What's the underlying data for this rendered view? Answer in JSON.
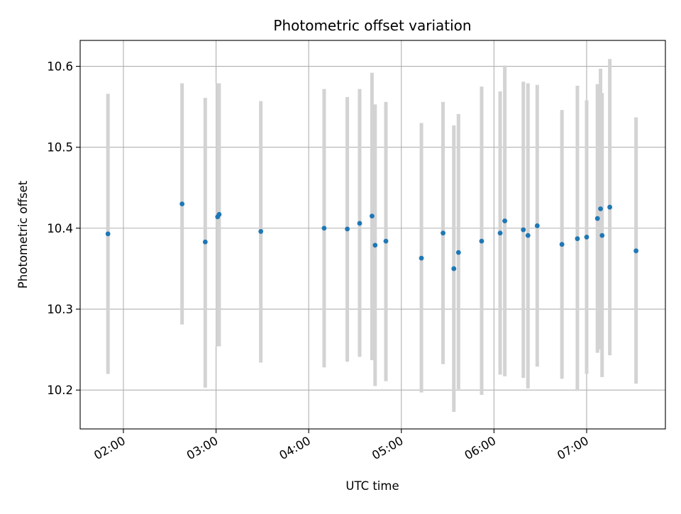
{
  "chart_data": {
    "type": "scatter",
    "title": "Photometric offset variation",
    "xlabel": "UTC time",
    "ylabel": "Photometric offset",
    "xlim": [
      "01:32",
      "07:51"
    ],
    "ylim": [
      10.152,
      10.632
    ],
    "xticks": [
      "02:00",
      "03:00",
      "04:00",
      "05:00",
      "06:00",
      "07:00"
    ],
    "yticks": [
      "10.2",
      "10.3",
      "10.4",
      "10.5",
      "10.6"
    ],
    "grid": true,
    "colors": {
      "point": "#1f77b4",
      "errorbar": "#d3d3d3",
      "grid": "#b0b0b0"
    },
    "points": [
      {
        "x": "01:50",
        "y": 10.393,
        "lo": 10.22,
        "hi": 10.566
      },
      {
        "x": "02:38",
        "y": 10.43,
        "lo": 10.281,
        "hi": 10.579
      },
      {
        "x": "02:53",
        "y": 10.383,
        "lo": 10.203,
        "hi": 10.561
      },
      {
        "x": "03:01",
        "y": 10.414,
        "lo": 10.254,
        "hi": 10.579
      },
      {
        "x": "03:02",
        "y": 10.417,
        "lo": 10.254,
        "hi": 10.579
      },
      {
        "x": "03:29",
        "y": 10.396,
        "lo": 10.234,
        "hi": 10.557
      },
      {
        "x": "04:10",
        "y": 10.4,
        "lo": 10.228,
        "hi": 10.572
      },
      {
        "x": "04:25",
        "y": 10.399,
        "lo": 10.235,
        "hi": 10.562
      },
      {
        "x": "04:33",
        "y": 10.406,
        "lo": 10.241,
        "hi": 10.572
      },
      {
        "x": "04:41",
        "y": 10.415,
        "lo": 10.237,
        "hi": 10.592
      },
      {
        "x": "04:43",
        "y": 10.379,
        "lo": 10.205,
        "hi": 10.553
      },
      {
        "x": "04:50",
        "y": 10.384,
        "lo": 10.211,
        "hi": 10.556
      },
      {
        "x": "05:13",
        "y": 10.363,
        "lo": 10.197,
        "hi": 10.53
      },
      {
        "x": "05:27",
        "y": 10.394,
        "lo": 10.232,
        "hi": 10.556
      },
      {
        "x": "05:34",
        "y": 10.35,
        "lo": 10.173,
        "hi": 10.527
      },
      {
        "x": "05:37",
        "y": 10.37,
        "lo": 10.201,
        "hi": 10.541
      },
      {
        "x": "05:52",
        "y": 10.384,
        "lo": 10.194,
        "hi": 10.575
      },
      {
        "x": "06:04",
        "y": 10.394,
        "lo": 10.219,
        "hi": 10.569
      },
      {
        "x": "06:07",
        "y": 10.409,
        "lo": 10.217,
        "hi": 10.601
      },
      {
        "x": "06:19",
        "y": 10.398,
        "lo": 10.215,
        "hi": 10.581
      },
      {
        "x": "06:22",
        "y": 10.391,
        "lo": 10.202,
        "hi": 10.579
      },
      {
        "x": "06:28",
        "y": 10.403,
        "lo": 10.229,
        "hi": 10.577
      },
      {
        "x": "06:44",
        "y": 10.38,
        "lo": 10.214,
        "hi": 10.546
      },
      {
        "x": "06:54",
        "y": 10.387,
        "lo": 10.199,
        "hi": 10.576
      },
      {
        "x": "07:00",
        "y": 10.389,
        "lo": 10.22,
        "hi": 10.558
      },
      {
        "x": "07:07",
        "y": 10.412,
        "lo": 10.246,
        "hi": 10.578
      },
      {
        "x": "07:09",
        "y": 10.424,
        "lo": 10.25,
        "hi": 10.597
      },
      {
        "x": "07:10",
        "y": 10.391,
        "lo": 10.216,
        "hi": 10.567
      },
      {
        "x": "07:15",
        "y": 10.426,
        "lo": 10.243,
        "hi": 10.609
      },
      {
        "x": "07:32",
        "y": 10.372,
        "lo": 10.208,
        "hi": 10.537
      }
    ]
  }
}
